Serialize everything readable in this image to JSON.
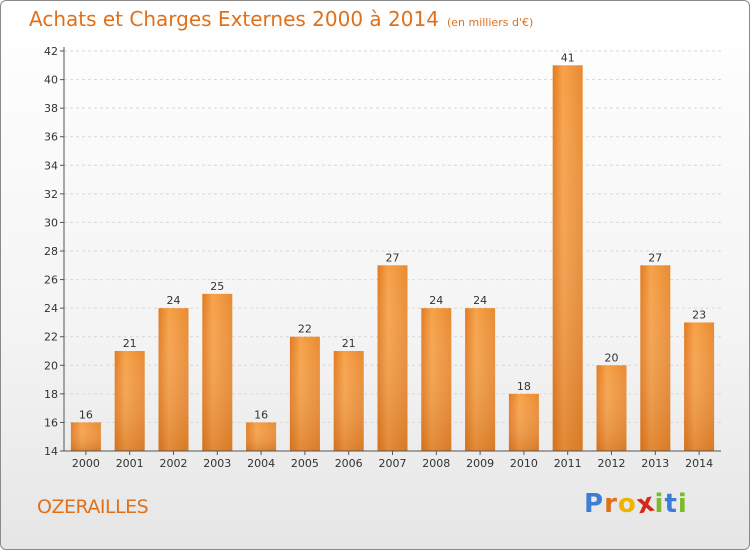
{
  "header": {
    "title": "Achats et Charges Externes 2000 à 2014",
    "subtitle": "(en milliers d'€)"
  },
  "footer": {
    "commune": "OZERAILLES",
    "logo_letters": [
      "P",
      "r",
      "o",
      "x",
      "i",
      "t",
      "i"
    ],
    "logo_colors": [
      "#3a7fd5",
      "#e0701a",
      "#f0b400",
      "#d6271b",
      "#7cba2a",
      "#3a7fd5",
      "#7cba2a"
    ]
  },
  "chart_data": {
    "type": "bar",
    "categories": [
      "2000",
      "2001",
      "2002",
      "2003",
      "2004",
      "2005",
      "2006",
      "2007",
      "2008",
      "2009",
      "2010",
      "2011",
      "2012",
      "2013",
      "2014"
    ],
    "values": [
      16,
      21,
      24,
      25,
      16,
      22,
      21,
      27,
      24,
      24,
      18,
      41,
      20,
      27,
      23
    ],
    "ylim": [
      14,
      42
    ],
    "yticks": [
      14,
      16,
      18,
      20,
      22,
      24,
      26,
      28,
      30,
      32,
      34,
      36,
      38,
      40,
      42
    ],
    "grid": true,
    "bar_color": "#f0922f",
    "bar_color_dark": "#d4731c"
  }
}
